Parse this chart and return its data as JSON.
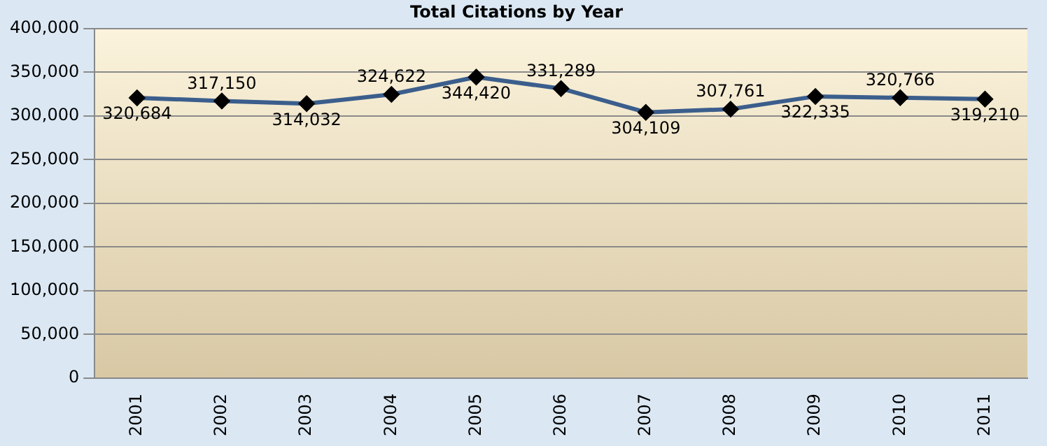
{
  "chart_data": {
    "type": "line",
    "title": "Total Citations by Year",
    "categories": [
      "2001",
      "2002",
      "2003",
      "2004",
      "2005",
      "2006",
      "2007",
      "2008",
      "2009",
      "2010",
      "2011"
    ],
    "series": [
      {
        "color": "#3b5e8c",
        "values": [
          320684,
          317150,
          314032,
          324622,
          344420,
          331289,
          304109,
          307761,
          322335,
          320766,
          319210
        ],
        "value_labels": [
          "320,684",
          "317,150",
          "314,032",
          "324,622",
          "344,420",
          "331,289",
          "304,109",
          "307,761",
          "322,335",
          "320,766",
          "319,210"
        ]
      }
    ],
    "ylim": [
      0,
      400000
    ],
    "yticks": [
      0,
      {
        "value": 50000,
        "label": "50,000"
      },
      {
        "value": 100000,
        "label": "100,000"
      },
      {
        "value": 150000,
        "label": "150,000"
      },
      {
        "value": 200000,
        "label": "200,000"
      },
      {
        "value": 250000,
        "label": "250,000"
      },
      {
        "value": 300000,
        "label": "300,000"
      },
      {
        "value": 350000,
        "label": "350,000"
      },
      {
        "value": 400000,
        "label": "400,000"
      }
    ],
    "grid": "y",
    "legend": false,
    "marker": "diamond",
    "line_style": "solid"
  }
}
